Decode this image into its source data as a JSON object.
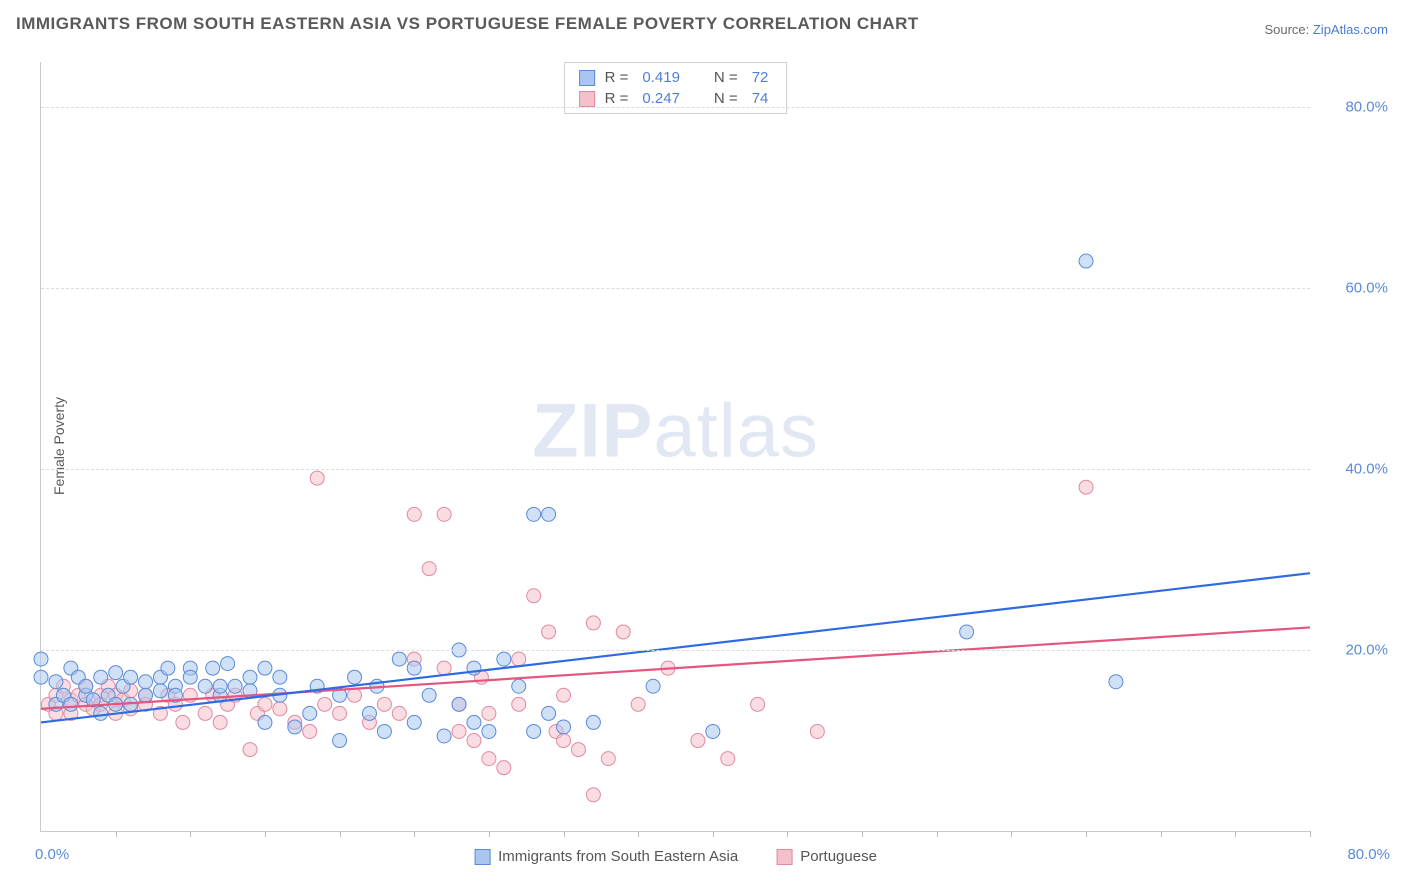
{
  "title": "IMMIGRANTS FROM SOUTH EASTERN ASIA VS PORTUGUESE FEMALE POVERTY CORRELATION CHART",
  "source": {
    "prefix": "Source: ",
    "site": "ZipAtlas.com"
  },
  "y_axis_label": "Female Poverty",
  "watermark": {
    "bold": "ZIP",
    "rest": "atlas"
  },
  "colors": {
    "series_a_fill": "#a9c6ef",
    "series_a_stroke": "#5a8bd8",
    "series_b_fill": "#f4c1cb",
    "series_b_stroke": "#e18aa0",
    "trend_a": "#2e6be0",
    "trend_b": "#e4567f",
    "grid": "#dcdcdc",
    "axis": "#c9c9c9",
    "tick_text": "#5a8bd8",
    "title_text": "#5a5a5a",
    "bg": "#ffffff"
  },
  "chart": {
    "type": "scatter",
    "xlim": [
      0,
      85
    ],
    "ylim": [
      0,
      85
    ],
    "x_tick_step": 5,
    "y_grid_values": [
      20,
      40,
      60,
      80
    ],
    "y_tick_labels": [
      "20.0%",
      "40.0%",
      "60.0%",
      "80.0%"
    ],
    "x_axis_labels": {
      "left": "0.0%",
      "right": "80.0%"
    },
    "marker_radius": 7,
    "marker_opacity": 0.55,
    "trend_line_width": 2.2
  },
  "stats_legend": {
    "rows": [
      {
        "r_label": "R =",
        "r": "0.419",
        "n_label": "N =",
        "n": "72",
        "swatch": "a"
      },
      {
        "r_label": "R =",
        "r": "0.247",
        "n_label": "N =",
        "n": "74",
        "swatch": "b"
      }
    ]
  },
  "bottom_legend": {
    "a": "Immigrants from South Eastern Asia",
    "b": "Portuguese"
  },
  "series_a": {
    "label": "Immigrants from South Eastern Asia",
    "trend": {
      "x1": 0,
      "y1": 12.0,
      "x2": 85,
      "y2": 28.5
    },
    "points": [
      [
        0,
        17
      ],
      [
        0,
        19
      ],
      [
        1,
        16.5
      ],
      [
        1,
        14
      ],
      [
        1.5,
        15
      ],
      [
        2,
        18
      ],
      [
        2,
        14
      ],
      [
        2.5,
        17
      ],
      [
        3,
        15
      ],
      [
        3,
        16
      ],
      [
        3.5,
        14.5
      ],
      [
        4,
        17
      ],
      [
        4,
        13
      ],
      [
        4.5,
        15
      ],
      [
        5,
        17.5
      ],
      [
        5,
        14
      ],
      [
        5.5,
        16
      ],
      [
        6,
        14
      ],
      [
        6,
        17
      ],
      [
        7,
        15
      ],
      [
        7,
        16.5
      ],
      [
        8,
        15.5
      ],
      [
        8,
        17
      ],
      [
        8.5,
        18
      ],
      [
        9,
        16
      ],
      [
        9,
        15
      ],
      [
        10,
        18
      ],
      [
        10,
        17
      ],
      [
        11,
        16
      ],
      [
        11.5,
        18
      ],
      [
        12,
        15
      ],
      [
        12,
        16
      ],
      [
        12.5,
        18.5
      ],
      [
        13,
        16
      ],
      [
        14,
        15.5
      ],
      [
        14,
        17
      ],
      [
        15,
        12
      ],
      [
        15,
        18
      ],
      [
        16,
        17
      ],
      [
        16,
        15
      ],
      [
        17,
        11.5
      ],
      [
        18,
        13
      ],
      [
        18.5,
        16
      ],
      [
        20,
        10
      ],
      [
        20,
        15
      ],
      [
        21,
        17
      ],
      [
        22,
        13
      ],
      [
        22.5,
        16
      ],
      [
        23,
        11
      ],
      [
        24,
        19
      ],
      [
        25,
        12
      ],
      [
        25,
        18
      ],
      [
        26,
        15
      ],
      [
        27,
        10.5
      ],
      [
        28,
        20
      ],
      [
        28,
        14
      ],
      [
        29,
        18
      ],
      [
        29,
        12
      ],
      [
        30,
        11
      ],
      [
        31,
        19
      ],
      [
        32,
        16
      ],
      [
        33,
        11
      ],
      [
        33,
        35
      ],
      [
        34,
        35
      ],
      [
        34,
        13
      ],
      [
        35,
        11.5
      ],
      [
        37,
        12
      ],
      [
        41,
        16
      ],
      [
        45,
        11
      ],
      [
        62,
        22
      ],
      [
        70,
        63
      ],
      [
        72,
        16.5
      ]
    ]
  },
  "series_b": {
    "label": "Portuguese",
    "trend": {
      "x1": 0,
      "y1": 13.5,
      "x2": 85,
      "y2": 22.5
    },
    "points": [
      [
        0.5,
        14
      ],
      [
        1,
        15
      ],
      [
        1,
        13
      ],
      [
        1.5,
        16
      ],
      [
        2,
        14.5
      ],
      [
        2,
        13
      ],
      [
        2.5,
        15
      ],
      [
        3,
        14
      ],
      [
        3,
        16
      ],
      [
        3.5,
        13.5
      ],
      [
        4,
        15
      ],
      [
        4,
        14
      ],
      [
        4.5,
        16
      ],
      [
        5,
        13
      ],
      [
        5,
        15
      ],
      [
        5.5,
        14.5
      ],
      [
        6,
        15.5
      ],
      [
        6,
        13.5
      ],
      [
        7,
        15
      ],
      [
        7,
        14
      ],
      [
        8,
        13
      ],
      [
        8.5,
        15
      ],
      [
        9,
        14
      ],
      [
        9.5,
        12
      ],
      [
        10,
        15
      ],
      [
        11,
        13
      ],
      [
        11.5,
        15
      ],
      [
        12,
        12
      ],
      [
        12.5,
        14
      ],
      [
        13,
        15
      ],
      [
        14,
        9
      ],
      [
        14.5,
        13
      ],
      [
        15,
        14
      ],
      [
        16,
        13.5
      ],
      [
        17,
        12
      ],
      [
        18,
        11
      ],
      [
        18.5,
        39
      ],
      [
        19,
        14
      ],
      [
        20,
        13
      ],
      [
        21,
        15
      ],
      [
        22,
        12
      ],
      [
        23,
        14
      ],
      [
        24,
        13
      ],
      [
        25,
        35
      ],
      [
        25,
        19
      ],
      [
        26,
        29
      ],
      [
        27,
        18
      ],
      [
        27,
        35
      ],
      [
        28,
        11
      ],
      [
        28,
        14
      ],
      [
        29,
        10
      ],
      [
        29.5,
        17
      ],
      [
        30,
        13
      ],
      [
        30,
        8
      ],
      [
        31,
        7
      ],
      [
        32,
        14
      ],
      [
        32,
        19
      ],
      [
        33,
        26
      ],
      [
        34,
        22
      ],
      [
        34.5,
        11
      ],
      [
        35,
        10
      ],
      [
        35,
        15
      ],
      [
        36,
        9
      ],
      [
        37,
        4
      ],
      [
        37,
        23
      ],
      [
        38,
        8
      ],
      [
        39,
        22
      ],
      [
        40,
        14
      ],
      [
        42,
        18
      ],
      [
        44,
        10
      ],
      [
        46,
        8
      ],
      [
        48,
        14
      ],
      [
        52,
        11
      ],
      [
        70,
        38
      ]
    ]
  }
}
